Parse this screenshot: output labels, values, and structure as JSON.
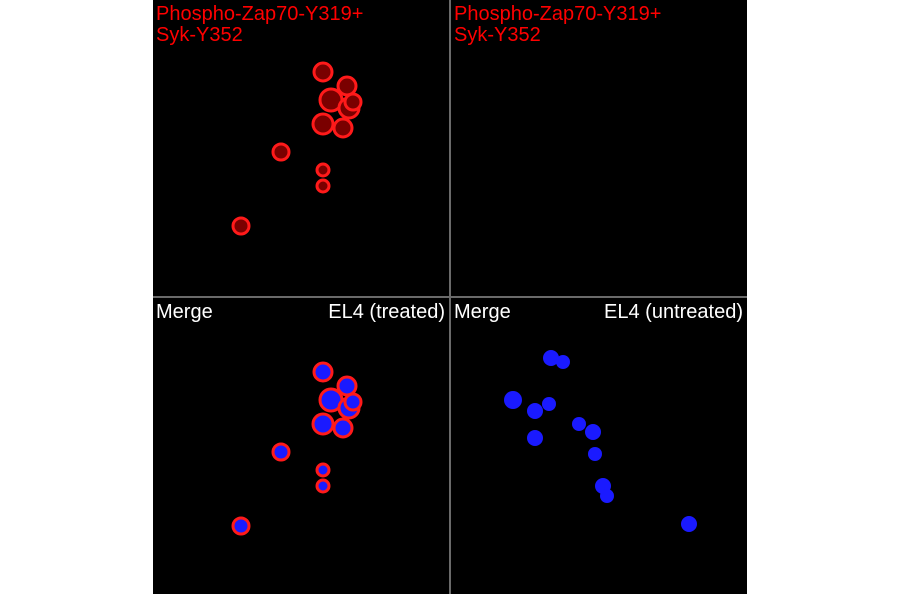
{
  "panels": [
    {
      "id": "top-left",
      "label_lines": [
        "Phospho-Zap70-Y319+",
        "Syk-Y352"
      ],
      "label_color": "#ff0000",
      "channel": "red"
    },
    {
      "id": "top-right",
      "label_lines": [
        "Phospho-Zap70-Y319+",
        "Syk-Y352"
      ],
      "label_color": "#ff0000",
      "channel": "none"
    },
    {
      "id": "bottom-left",
      "left_label": "Merge",
      "right_label": "EL4 (treated)",
      "label_color": "#ffffff",
      "channel": "merge"
    },
    {
      "id": "bottom-right",
      "left_label": "Merge",
      "right_label": "EL4 (untreated)",
      "label_color": "#ffffff",
      "channel": "blue"
    }
  ],
  "colors": {
    "background": "#000000",
    "stain_red": "#ff1a1a",
    "stain_blue": "#1a1aff",
    "divider": "#6a6a6a"
  }
}
